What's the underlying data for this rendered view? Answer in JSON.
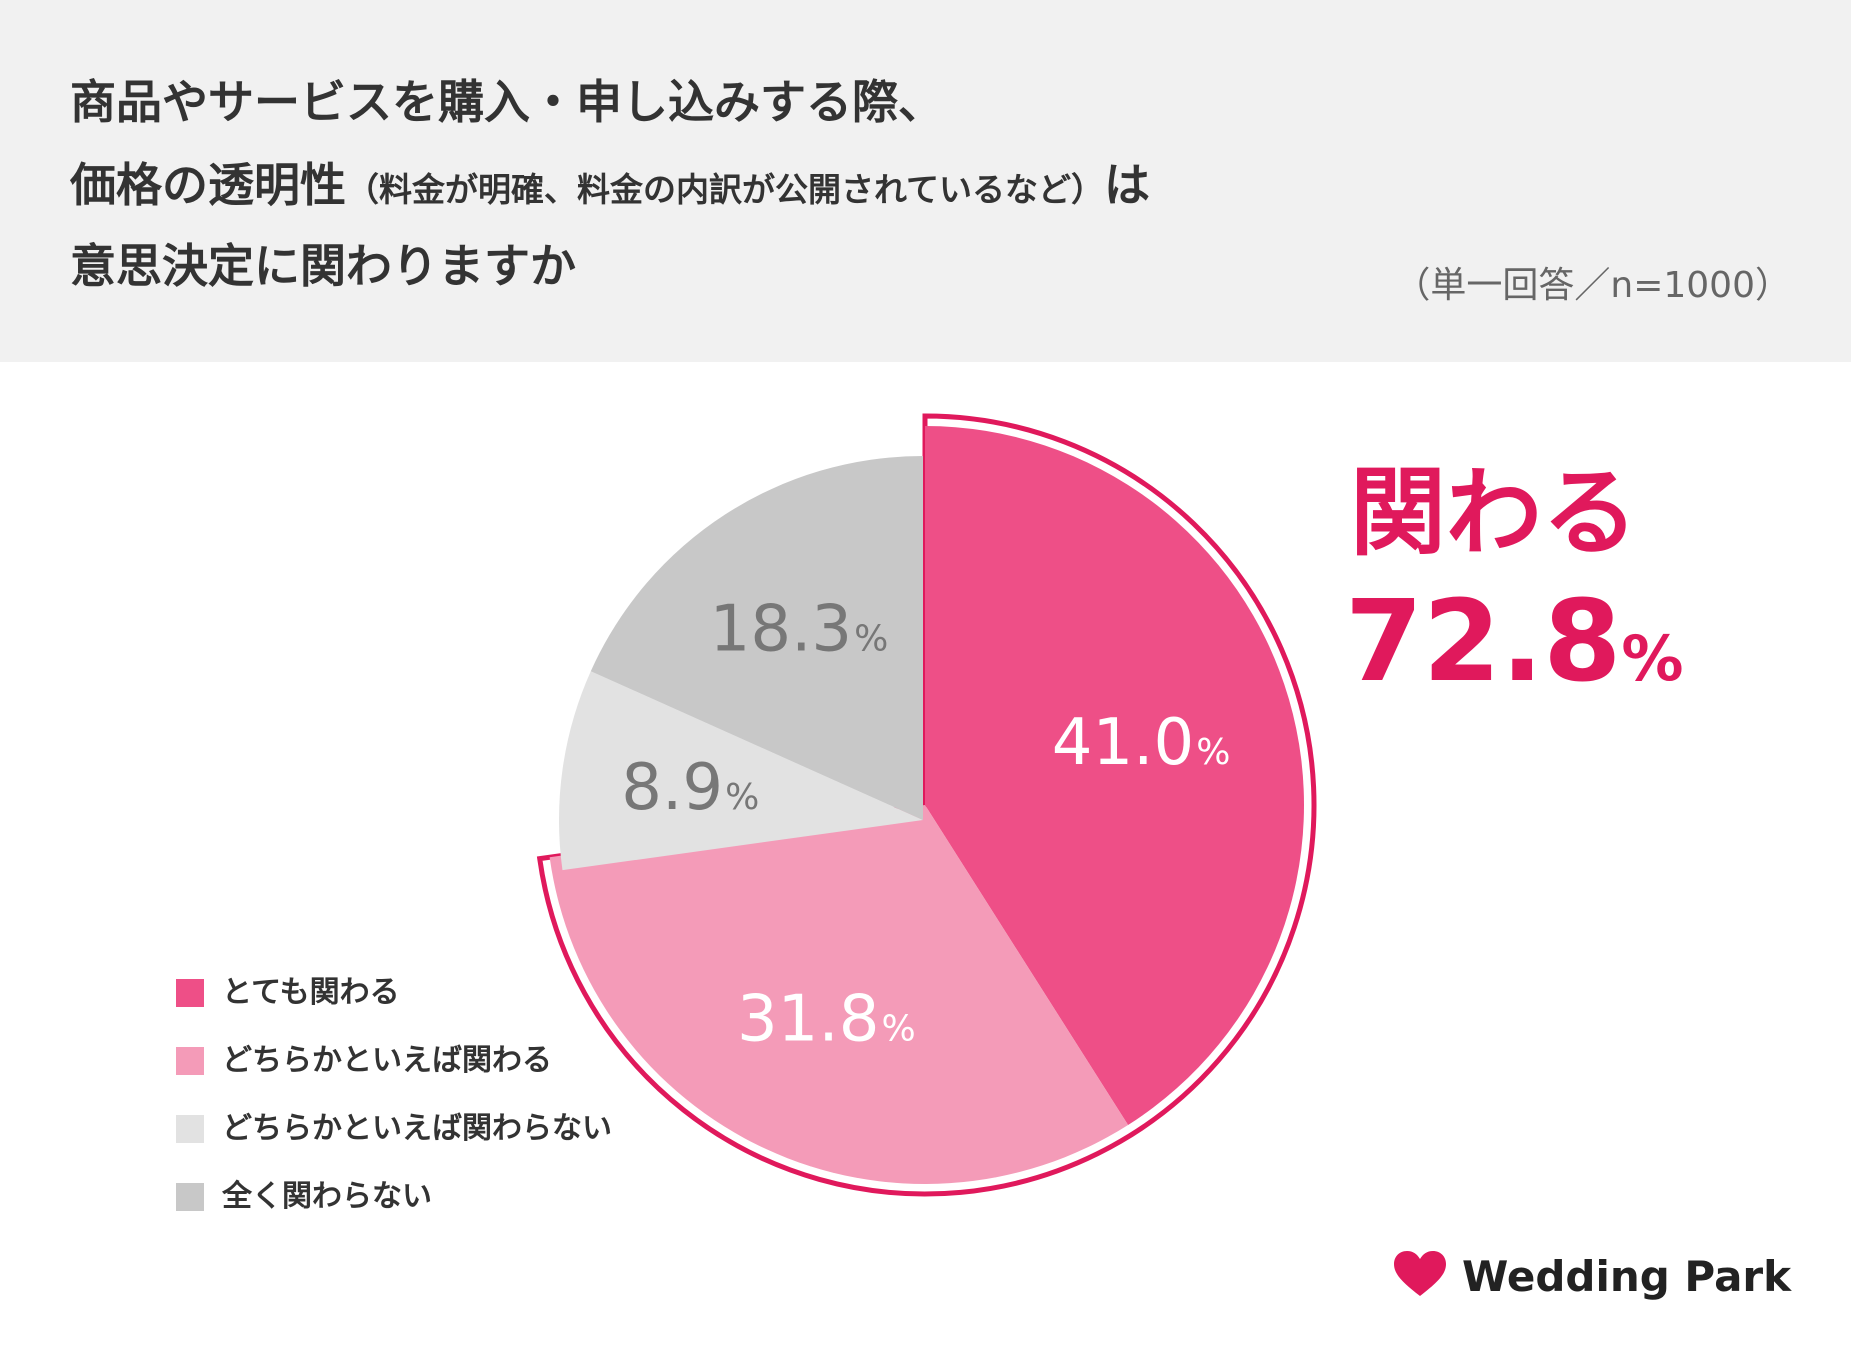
{
  "header": {
    "title_line1": "商品やサービスを購入・申し込みする際、",
    "title_line2_main": "価格の透明性",
    "title_line2_sub": "（料金が明確、料金の内訳が公開されているなど）",
    "title_line2_tail": "は",
    "title_line3": "意思決定に関わりますか",
    "note": "（単一回答／n=1000）"
  },
  "chart_data": {
    "type": "pie",
    "title": "商品やサービスを購入・申し込みする際、価格の透明性（料金が明確、料金の内訳が公開されているなど）は意思決定に関わりますか",
    "sample": "n=1000",
    "unit": "%",
    "slices": [
      {
        "label": "とても関わる",
        "value": 41.0,
        "value_text": "41.0",
        "color": "#ee4f87",
        "text_color": "#ffffff"
      },
      {
        "label": "どちらかといえば関わる",
        "value": 31.8,
        "value_text": "31.8",
        "color": "#f49bb8",
        "text_color": "#ffffff"
      },
      {
        "label": "どちらかといえば関わらない",
        "value": 8.9,
        "value_text": "8.9",
        "color": "#e2e2e2",
        "text_color": "#777777"
      },
      {
        "label": "全く関わらない",
        "value": 18.3,
        "value_text": "18.3",
        "color": "#c8c8c8",
        "text_color": "#777777"
      }
    ],
    "highlight": {
      "label": "関わる",
      "value_text": "72.8",
      "unit": "%",
      "color": "#e0195c"
    },
    "legend_position": "bottom-left"
  },
  "brand": {
    "name": "Wedding Park",
    "color": "#e0195c"
  }
}
